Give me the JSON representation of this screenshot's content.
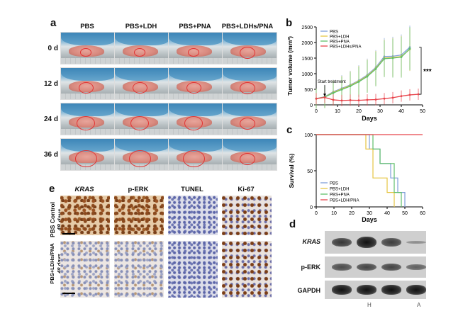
{
  "panels": {
    "a": "a",
    "b": "b",
    "c": "c",
    "d": "d",
    "e": "e"
  },
  "panel_a": {
    "columns": [
      "PBS",
      "PBS+LDH",
      "PBS+PNA",
      "PBS+LDHs/PNA"
    ],
    "rows": [
      "0 d",
      "12 d",
      "24 d",
      "36 d"
    ]
  },
  "panel_e": {
    "columns": [
      "KRAS",
      "p-ERK",
      "TUNEL",
      "Ki-67"
    ],
    "rows": [
      {
        "line1": "PBS Control",
        "line2": "48 days"
      },
      {
        "line1": "PBS+LDHs/PNA",
        "line2": "48 days"
      }
    ]
  },
  "panel_d": {
    "bands": [
      "KRAS",
      "p-ERK",
      "GAPDH"
    ],
    "lane_labels": [
      "H",
      "A"
    ],
    "band_intensity": {
      "KRAS": [
        0.75,
        1.0,
        0.7,
        0.15
      ],
      "p-ERK": [
        0.6,
        0.65,
        0.65,
        0.45
      ],
      "GAPDH": [
        1.0,
        1.0,
        1.0,
        1.0
      ]
    }
  },
  "colors": {
    "PBS": "#7f9fd8",
    "PBS+LDH": "#e6c544",
    "PBS+PNA": "#5fbf6a",
    "PBS+LDHs/PNA": "#e8434b",
    "tumor_circle": "#e33333"
  },
  "chart_data": [
    {
      "type": "line",
      "panel": "b",
      "xlabel": "Days",
      "ylabel": "Tumor volume (mm³)",
      "xlim": [
        0,
        50
      ],
      "ylim": [
        0,
        2500
      ],
      "xticks": [
        0,
        10,
        20,
        30,
        40,
        50
      ],
      "yticks": [
        0,
        500,
        1000,
        1500,
        2000,
        2500
      ],
      "legend_position": "top-left",
      "annotation": "Start treatment",
      "significance": "***",
      "x": [
        0,
        4,
        8,
        12,
        16,
        20,
        24,
        28,
        32,
        36,
        40,
        44,
        48
      ],
      "series": [
        {
          "name": "PBS",
          "values": [
            200,
            260,
            420,
            530,
            640,
            780,
            960,
            1200,
            1550,
            1560,
            1600,
            1850,
            null
          ],
          "color": "#7f9fd8"
        },
        {
          "name": "PBS+LDH",
          "values": [
            200,
            250,
            400,
            510,
            620,
            760,
            930,
            1170,
            1500,
            1520,
            1550,
            1780,
            null
          ],
          "color": "#e6c544"
        },
        {
          "name": "PBS+PNA",
          "values": [
            200,
            250,
            380,
            490,
            600,
            740,
            910,
            1150,
            1480,
            1500,
            1530,
            1800,
            null
          ],
          "color": "#5fbf6a"
        },
        {
          "name": "PBS+LDHs/PNA",
          "values": [
            200,
            240,
            160,
            140,
            150,
            145,
            160,
            170,
            200,
            230,
            280,
            320,
            340
          ],
          "color": "#e8434b"
        }
      ]
    },
    {
      "type": "line",
      "panel": "c",
      "xlabel": "Days",
      "ylabel": "Survival (%)",
      "xlim": [
        0,
        60
      ],
      "ylim": [
        0,
        100
      ],
      "xticks": [
        0,
        10,
        20,
        30,
        40,
        50,
        60
      ],
      "yticks": [
        0,
        50,
        100
      ],
      "legend_position": "bottom-left",
      "series": [
        {
          "name": "PBS",
          "color": "#7f9fd8",
          "steps": [
            [
              0,
              100
            ],
            [
              30,
              100
            ],
            [
              30,
              80
            ],
            [
              36,
              80
            ],
            [
              36,
              60
            ],
            [
              42,
              60
            ],
            [
              42,
              40
            ],
            [
              46,
              40
            ],
            [
              46,
              20
            ],
            [
              50,
              20
            ],
            [
              50,
              0
            ]
          ]
        },
        {
          "name": "PBS+LDH",
          "color": "#e6c544",
          "steps": [
            [
              0,
              100
            ],
            [
              28,
              100
            ],
            [
              28,
              80
            ],
            [
              32,
              80
            ],
            [
              32,
              40
            ],
            [
              40,
              40
            ],
            [
              40,
              20
            ],
            [
              44,
              20
            ],
            [
              44,
              0
            ]
          ]
        },
        {
          "name": "PBS+PNA",
          "color": "#5fbf6a",
          "steps": [
            [
              0,
              100
            ],
            [
              32,
              100
            ],
            [
              32,
              80
            ],
            [
              36,
              80
            ],
            [
              36,
              60
            ],
            [
              44,
              60
            ],
            [
              44,
              20
            ],
            [
              48,
              20
            ],
            [
              48,
              0
            ]
          ]
        },
        {
          "name": "PBS+LDH/PNA",
          "color": "#e8434b",
          "steps": [
            [
              0,
              100
            ],
            [
              60,
              100
            ]
          ]
        }
      ]
    }
  ]
}
